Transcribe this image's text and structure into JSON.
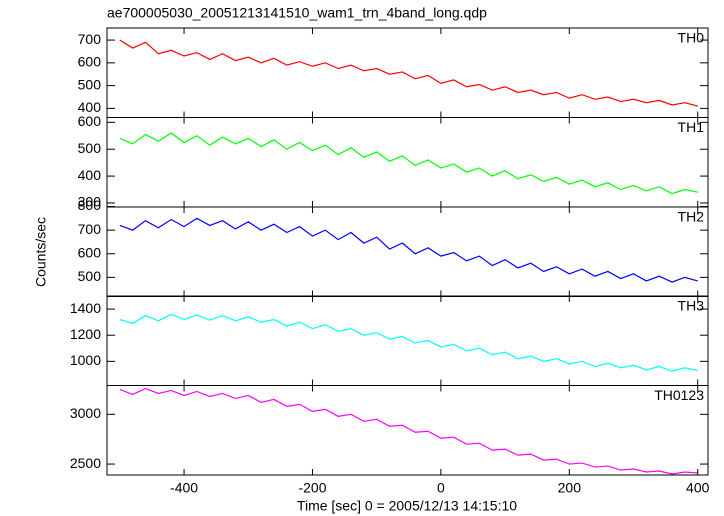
{
  "chart_data": [
    {
      "type": "line",
      "title": "ae700005030_20051213141510_wam1_trn_4band_long.qdp",
      "ylabel": "Counts/sec",
      "xlim": [
        -520,
        416
      ],
      "xticks": [
        -400,
        -200,
        0,
        200,
        400
      ],
      "x": [
        -500,
        -480,
        -460,
        -440,
        -420,
        -400,
        -380,
        -360,
        -340,
        -320,
        -300,
        -280,
        -260,
        -240,
        -220,
        -200,
        -180,
        -160,
        -140,
        -120,
        -100,
        -80,
        -60,
        -40,
        -20,
        0,
        20,
        40,
        60,
        80,
        100,
        120,
        140,
        160,
        180,
        200,
        220,
        240,
        260,
        280,
        300,
        320,
        340,
        360,
        380,
        400
      ],
      "series": [
        {
          "name": "TH0",
          "color": "#ff0000",
          "values": [
            700,
            665,
            690,
            640,
            655,
            630,
            645,
            615,
            640,
            610,
            625,
            600,
            620,
            590,
            605,
            585,
            600,
            575,
            590,
            565,
            575,
            550,
            560,
            530,
            545,
            510,
            525,
            495,
            505,
            480,
            495,
            470,
            480,
            460,
            470,
            445,
            460,
            440,
            450,
            430,
            440,
            425,
            435,
            415,
            425,
            410
          ]
        }
      ],
      "ylim": [
        360,
        753
      ],
      "yticks": [
        400,
        500,
        600,
        700
      ]
    },
    {
      "type": "line",
      "xlim": [
        -520,
        416
      ],
      "xticks": [
        -400,
        -200,
        0,
        200,
        400
      ],
      "x": [
        -500,
        -480,
        -460,
        -440,
        -420,
        -400,
        -380,
        -360,
        -340,
        -320,
        -300,
        -280,
        -260,
        -240,
        -220,
        -200,
        -180,
        -160,
        -140,
        -120,
        -100,
        -80,
        -60,
        -40,
        -20,
        0,
        20,
        40,
        60,
        80,
        100,
        120,
        140,
        160,
        180,
        200,
        220,
        240,
        260,
        280,
        300,
        320,
        340,
        360,
        380,
        400
      ],
      "series": [
        {
          "name": "TH1",
          "color": "#00ff00",
          "values": [
            540,
            520,
            555,
            530,
            560,
            525,
            550,
            515,
            545,
            520,
            540,
            510,
            535,
            500,
            525,
            495,
            515,
            480,
            505,
            470,
            490,
            455,
            475,
            440,
            460,
            430,
            445,
            415,
            430,
            400,
            420,
            390,
            405,
            380,
            395,
            370,
            385,
            360,
            375,
            350,
            365,
            345,
            360,
            335,
            350,
            340
          ]
        }
      ],
      "ylim": [
        285,
        618
      ],
      "yticks": [
        300,
        400,
        500,
        600
      ]
    },
    {
      "type": "line",
      "xlim": [
        -520,
        416
      ],
      "xticks": [
        -400,
        -200,
        0,
        200,
        400
      ],
      "x": [
        -500,
        -480,
        -460,
        -440,
        -420,
        -400,
        -380,
        -360,
        -340,
        -320,
        -300,
        -280,
        -260,
        -240,
        -220,
        -200,
        -180,
        -160,
        -140,
        -120,
        -100,
        -80,
        -60,
        -40,
        -20,
        0,
        20,
        40,
        60,
        80,
        100,
        120,
        140,
        160,
        180,
        200,
        220,
        240,
        260,
        280,
        300,
        320,
        340,
        360,
        380,
        400
      ],
      "series": [
        {
          "name": "TH2",
          "color": "#0000ff",
          "values": [
            720,
            700,
            740,
            710,
            745,
            715,
            750,
            720,
            740,
            705,
            735,
            700,
            725,
            690,
            715,
            675,
            700,
            660,
            690,
            645,
            670,
            620,
            645,
            600,
            625,
            590,
            605,
            570,
            590,
            550,
            575,
            540,
            560,
            525,
            545,
            515,
            535,
            505,
            525,
            495,
            515,
            485,
            505,
            480,
            500,
            485
          ]
        }
      ],
      "ylim": [
        419,
        798
      ],
      "yticks": [
        500,
        600,
        700,
        800
      ]
    },
    {
      "type": "line",
      "xlim": [
        -520,
        416
      ],
      "xticks": [
        -400,
        -200,
        0,
        200,
        400
      ],
      "x": [
        -500,
        -480,
        -460,
        -440,
        -420,
        -400,
        -380,
        -360,
        -340,
        -320,
        -300,
        -280,
        -260,
        -240,
        -220,
        -200,
        -180,
        -160,
        -140,
        -120,
        -100,
        -80,
        -60,
        -40,
        -20,
        0,
        20,
        40,
        60,
        80,
        100,
        120,
        140,
        160,
        180,
        200,
        220,
        240,
        260,
        280,
        300,
        320,
        340,
        360,
        380,
        400
      ],
      "series": [
        {
          "name": "TH3",
          "color": "#00ffff",
          "values": [
            1320,
            1290,
            1350,
            1310,
            1360,
            1320,
            1355,
            1315,
            1350,
            1310,
            1340,
            1300,
            1320,
            1270,
            1300,
            1250,
            1280,
            1230,
            1250,
            1200,
            1220,
            1170,
            1190,
            1140,
            1160,
            1110,
            1130,
            1080,
            1100,
            1050,
            1070,
            1020,
            1040,
            1000,
            1020,
            980,
            1000,
            960,
            985,
            950,
            970,
            935,
            960,
            925,
            950,
            930
          ]
        }
      ],
      "ylim": [
        815,
        1500
      ],
      "yticks": [
        1000,
        1200,
        1400
      ]
    },
    {
      "type": "line",
      "xlabel": "Time [sec] 0 = 2005/12/13 14:15:10",
      "xlim": [
        -520,
        416
      ],
      "xticks": [
        -400,
        -200,
        0,
        200,
        400
      ],
      "x": [
        -500,
        -480,
        -460,
        -440,
        -420,
        -400,
        -380,
        -360,
        -340,
        -320,
        -300,
        -280,
        -260,
        -240,
        -220,
        -200,
        -180,
        -160,
        -140,
        -120,
        -100,
        -80,
        -60,
        -40,
        -20,
        0,
        20,
        40,
        60,
        80,
        100,
        120,
        140,
        160,
        180,
        200,
        220,
        240,
        260,
        280,
        300,
        320,
        340,
        360,
        380,
        400
      ],
      "series": [
        {
          "name": "TH0123",
          "color": "#ff00ff",
          "values": [
            3250,
            3200,
            3260,
            3210,
            3240,
            3190,
            3230,
            3180,
            3210,
            3160,
            3190,
            3120,
            3150,
            3080,
            3100,
            3030,
            3050,
            2980,
            3000,
            2930,
            2950,
            2880,
            2890,
            2820,
            2830,
            2760,
            2770,
            2700,
            2710,
            2640,
            2650,
            2590,
            2600,
            2540,
            2550,
            2500,
            2510,
            2470,
            2480,
            2440,
            2450,
            2420,
            2430,
            2400,
            2420,
            2410
          ]
        }
      ],
      "ylim": [
        2390,
        3290
      ],
      "yticks": [
        2500,
        3000
      ]
    }
  ]
}
